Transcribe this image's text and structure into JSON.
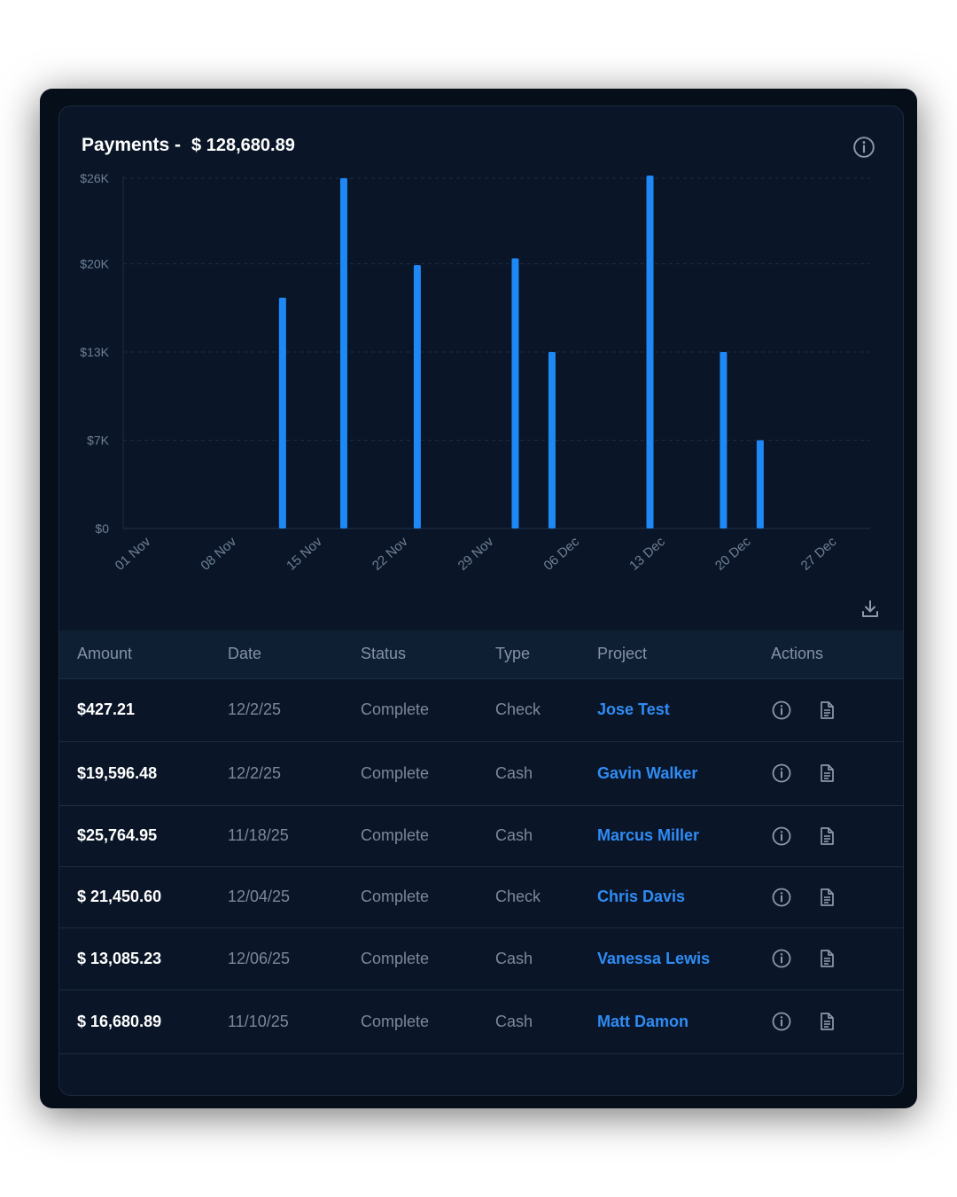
{
  "header": {
    "title": "Payments -",
    "total": "$ 128,680.89"
  },
  "colors": {
    "background": "#0a1628",
    "bar": "#1e88f5",
    "link": "#2f8cf5",
    "header_row": "#0e1e33"
  },
  "icons": {
    "header_info": "info-circle-icon",
    "download": "download-icon",
    "row_info": "info-circle-icon",
    "row_document": "document-icon"
  },
  "chart_data": {
    "type": "bar",
    "title": "",
    "xlabel": "",
    "ylabel": "",
    "ylim": [
      0,
      26000
    ],
    "grid": true,
    "x_ticks": [
      "01 Nov",
      "08 Nov",
      "15 Nov",
      "22 Nov",
      "29 Nov",
      "06 Dec",
      "13 Dec",
      "20 Dec",
      "27 Dec"
    ],
    "y_ticks": [
      {
        "value": 0,
        "label": "$0"
      },
      {
        "value": 6500,
        "label": "$7K"
      },
      {
        "value": 13000,
        "label": "$13K"
      },
      {
        "value": 19500,
        "label": "$20K"
      },
      {
        "value": 25800,
        "label": "$26K"
      }
    ],
    "x_range": [
      "2025-11-01",
      "2025-12-27"
    ],
    "bars": [
      {
        "date": "2025-11-13",
        "value": 17000
      },
      {
        "date": "2025-11-18",
        "value": 25800
      },
      {
        "date": "2025-11-24",
        "value": 19400
      },
      {
        "date": "2025-12-02",
        "value": 19900
      },
      {
        "date": "2025-12-05",
        "value": 13000
      },
      {
        "date": "2025-12-13",
        "value": 26000
      },
      {
        "date": "2025-12-19",
        "value": 13000
      },
      {
        "date": "2025-12-22",
        "value": 6500
      }
    ]
  },
  "table": {
    "columns": {
      "amount": "Amount",
      "date": "Date",
      "status": "Status",
      "type": "Type",
      "project": "Project",
      "actions": "Actions"
    },
    "rows": [
      {
        "amount": "$427.21",
        "date": "12/2/25",
        "status": "Complete",
        "type": "Check",
        "project": "Jose Test"
      },
      {
        "amount": "$19,596.48",
        "date": "12/2/25",
        "status": "Complete",
        "type": "Cash",
        "project": "Gavin Walker"
      },
      {
        "amount": "$25,764.95",
        "date": "11/18/25",
        "status": "Complete",
        "type": "Cash",
        "project": "Marcus Miller"
      },
      {
        "amount": "$ 21,450.60",
        "date": "12/04/25",
        "status": "Complete",
        "type": "Check",
        "project": "Chris Davis"
      },
      {
        "amount": "$ 13,085.23",
        "date": "12/06/25",
        "status": "Complete",
        "type": "Cash",
        "project": "Vanessa Lewis"
      },
      {
        "amount": "$ 16,680.89",
        "date": "11/10/25",
        "status": "Complete",
        "type": "Cash",
        "project": "Matt Damon"
      }
    ]
  }
}
